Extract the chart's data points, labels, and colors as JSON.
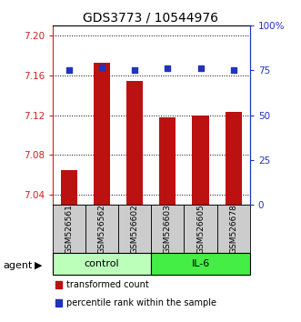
{
  "title": "GDS3773 / 10544976",
  "samples": [
    "GSM526561",
    "GSM526562",
    "GSM526602",
    "GSM526603",
    "GSM526605",
    "GSM526678"
  ],
  "bar_values": [
    7.065,
    7.173,
    7.154,
    7.118,
    7.12,
    7.123
  ],
  "percentile_values": [
    75,
    77,
    75,
    76,
    76,
    75
  ],
  "ylim_left": [
    7.03,
    7.21
  ],
  "ylim_right": [
    0,
    100
  ],
  "yticks_left": [
    7.04,
    7.08,
    7.12,
    7.16,
    7.2
  ],
  "yticks_right": [
    0,
    25,
    50,
    75,
    100
  ],
  "bar_color": "#bb1111",
  "dot_color": "#2233bb",
  "groups": [
    {
      "label": "control",
      "indices": [
        0,
        1,
        2
      ],
      "color": "#bbffbb"
    },
    {
      "label": "IL-6",
      "indices": [
        3,
        4,
        5
      ],
      "color": "#44ee44"
    }
  ],
  "group_row_label": "agent",
  "legend_items": [
    {
      "label": "transformed count",
      "color": "#bb1111"
    },
    {
      "label": "percentile rank within the sample",
      "color": "#2233bb"
    }
  ],
  "sample_box_color": "#cccccc",
  "title_fontsize": 10,
  "tick_fontsize": 7.5,
  "label_fontsize": 6.5,
  "axis_left_color": "#cc2222",
  "axis_right_color": "#2233bb",
  "grid_color": "#000000",
  "spine_color": "#000000"
}
